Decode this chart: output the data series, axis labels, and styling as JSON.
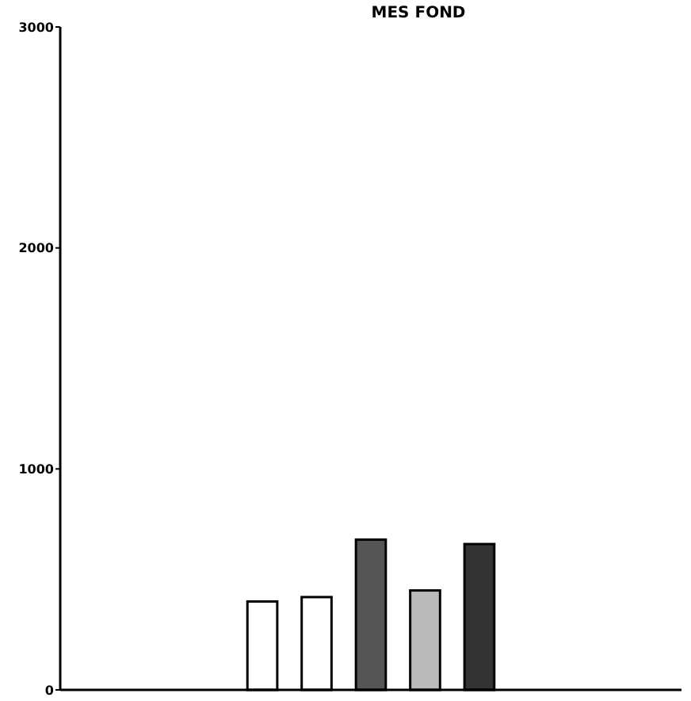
{
  "chart_data": {
    "type": "bar",
    "title": "MES FOND",
    "categories": [
      null,
      null,
      null,
      null,
      null,
      null,
      null,
      null,
      null,
      null,
      null
    ],
    "values": [
      null,
      null,
      null,
      400,
      420,
      680,
      450,
      660,
      null,
      null,
      null
    ],
    "colors": [
      null,
      null,
      null,
      "#ffffff",
      "#ffffff",
      "#555555",
      "#bbbbbb",
      "#333333",
      null,
      null,
      null
    ],
    "ylim": [
      0,
      3000
    ],
    "yticks": [
      0,
      1000,
      2000,
      3000
    ],
    "grid": false
  }
}
